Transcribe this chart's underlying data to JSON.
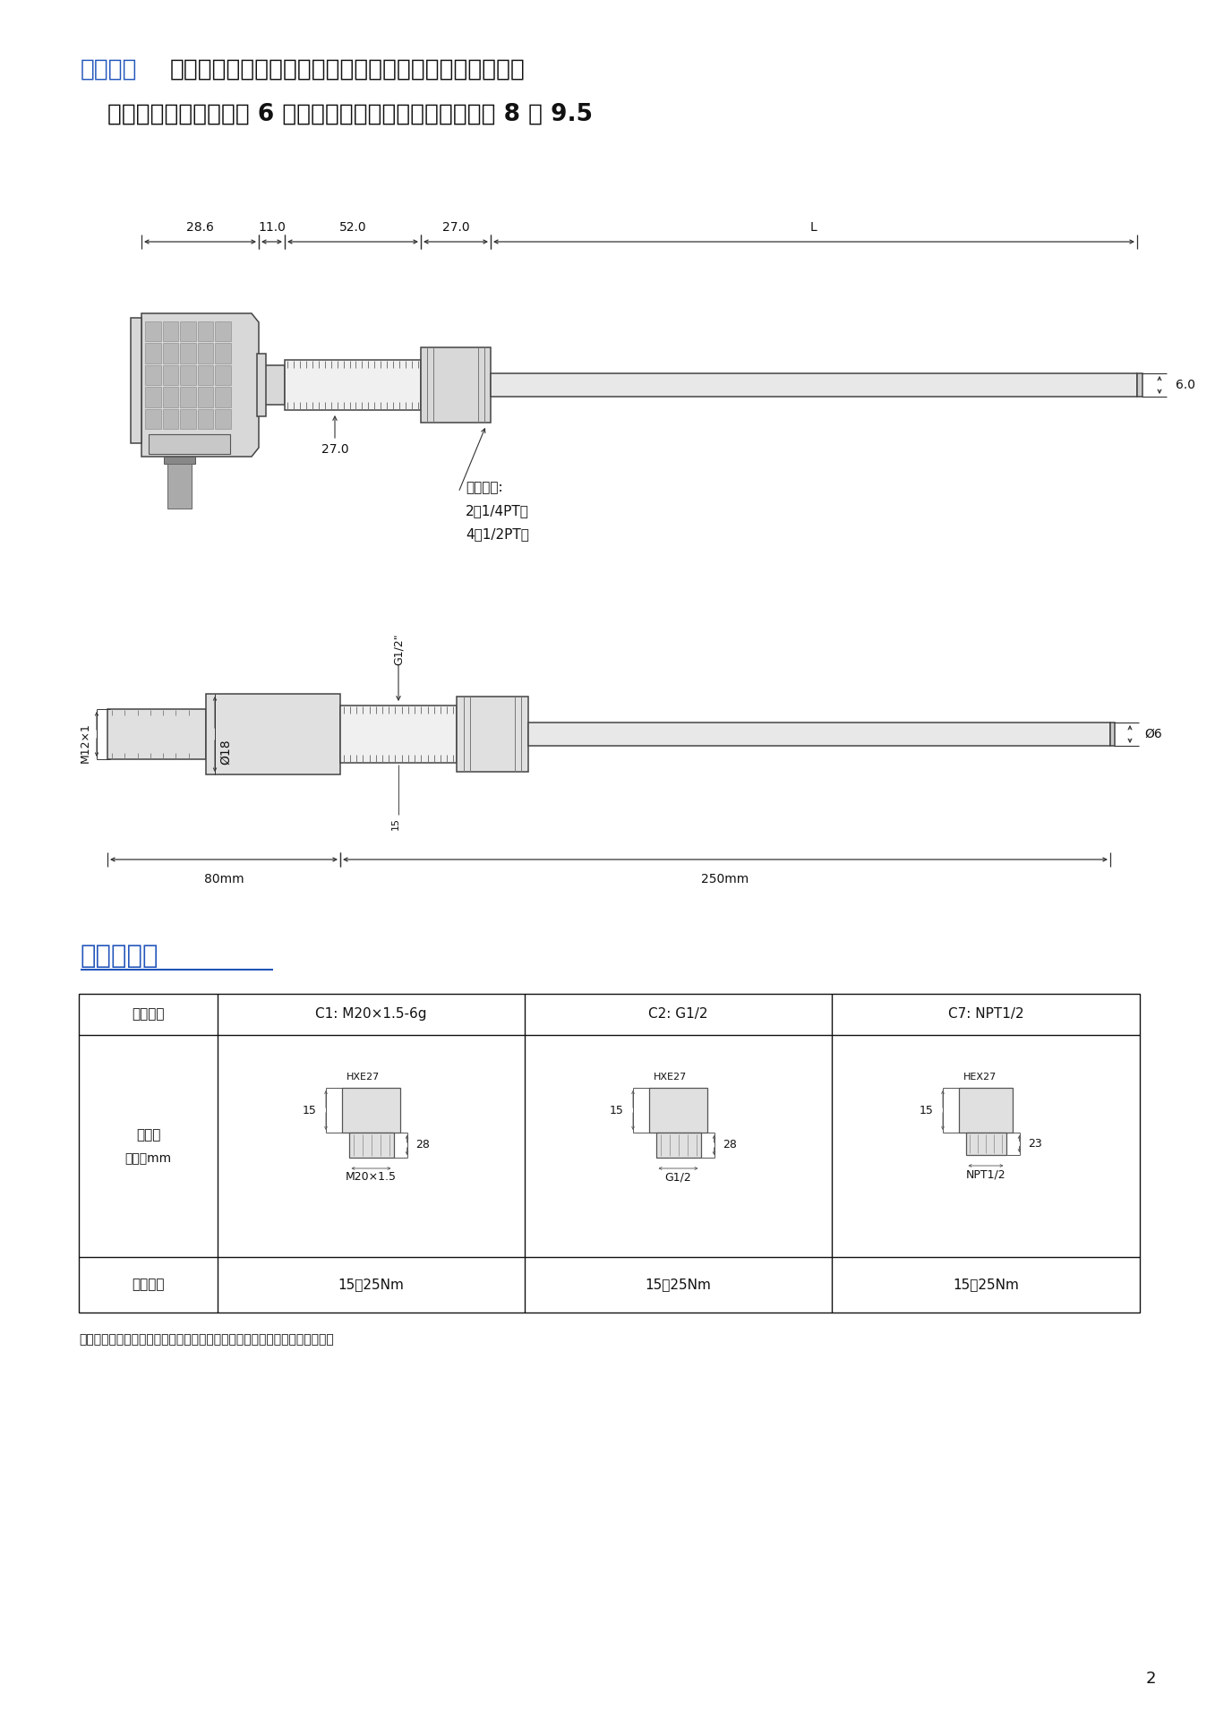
{
  "page_bg": "#ffffff",
  "title_blue": "尺寸图：",
  "title_black1": "随温度的高低来决定用几片散热片，因些整体尺寸也会产",
  "title_black2": "生不定性的变化（最多 6 片），压力的增加管径也会变动为 8 或 9.5",
  "blue_color": "#2255bb",
  "section_title": "选配螺纹：",
  "col0_label1": "尺寸图",
  "col0_label2": "单位：mm",
  "tbl_h0": "螺纹代码",
  "tbl_h1": "C1: M20×1.5-6g",
  "tbl_h2": "C2: G1/2",
  "tbl_h3": "C7: NPT1/2",
  "tbl_r2_0": "建议扭矩",
  "tbl_r2_val": "15～25Nm",
  "note_text": "注：扭矩取决于各种因素，例如幺片材料、配套材料、螺纹润滑及压力大小。",
  "page_num": "2",
  "conn_label": "连接螺牙:",
  "conn_line2": "2（1/4PT）",
  "conn_line3": "4（1/2PT）",
  "m12_label": "M12×1",
  "phi18_label": "Ø18",
  "phi6_label": "Ø6",
  "g12_label": "G1/2\"",
  "dim_80": "80mm",
  "dim_250": "250mm"
}
